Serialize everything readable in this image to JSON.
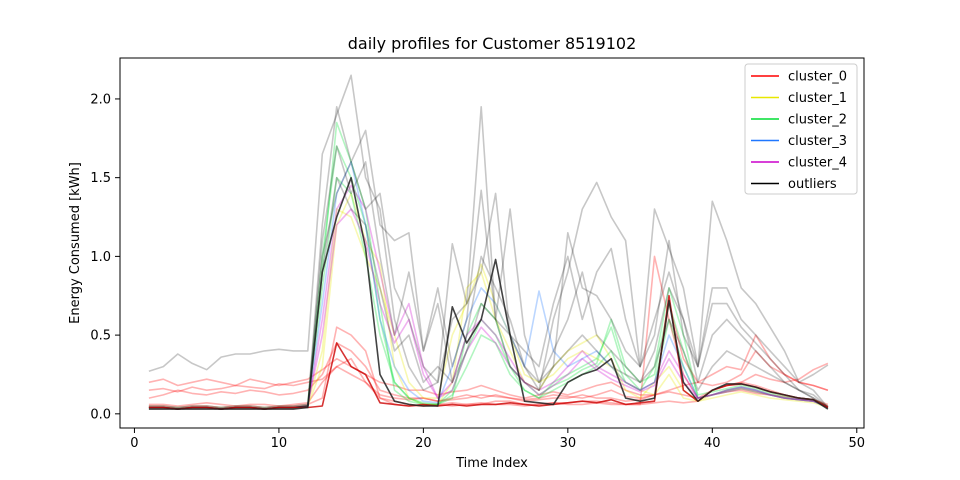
{
  "chart_data": {
    "type": "line",
    "title": "daily profiles for Customer 8519102",
    "xlabel": "Time Index",
    "ylabel": "Energy Consumed [kWh]",
    "xlim": [
      -1,
      50.5
    ],
    "ylim": [
      -0.09,
      2.26
    ],
    "xticks": [
      0,
      10,
      20,
      30,
      40,
      50
    ],
    "yticks": [
      0.0,
      0.5,
      1.0,
      1.5,
      2.0
    ],
    "ytick_labels": [
      "0.0",
      "0.5",
      "1.0",
      "1.5",
      "2.0"
    ],
    "legend_position": "upper-right",
    "series": [
      {
        "name": "cluster_0",
        "color": "#ff0000",
        "alpha": 0.3,
        "lines": [
          [
            0.15,
            0.16,
            0.14,
            0.17,
            0.15,
            0.16,
            0.18,
            0.17,
            0.16,
            0.19,
            0.18,
            0.2,
            0.22,
            0.3,
            0.25,
            0.2,
            0.12,
            0.1,
            0.09,
            0.1,
            0.08,
            0.09,
            0.1,
            0.12,
            0.11,
            0.1,
            0.09,
            0.1,
            0.12,
            0.11,
            0.1,
            0.12,
            0.15,
            0.11,
            0.1,
            0.12,
            0.14,
            0.12,
            0.1,
            0.15,
            0.18,
            0.2,
            0.25,
            0.22,
            0.2,
            0.22,
            0.28,
            0.32
          ],
          [
            0.05,
            0.05,
            0.04,
            0.05,
            0.05,
            0.04,
            0.05,
            0.05,
            0.04,
            0.05,
            0.05,
            0.06,
            0.1,
            0.55,
            0.5,
            0.4,
            0.1,
            0.06,
            0.05,
            0.05,
            0.06,
            0.07,
            0.06,
            0.06,
            0.08,
            0.08,
            0.06,
            0.06,
            0.07,
            0.07,
            0.08,
            0.08,
            0.07,
            0.06,
            0.06,
            0.07,
            0.08,
            0.07,
            0.08,
            0.15,
            0.18,
            0.2,
            0.18,
            0.15,
            0.12,
            0.1,
            0.09,
            0.05
          ],
          [
            0.1,
            0.12,
            0.15,
            0.13,
            0.12,
            0.14,
            0.13,
            0.15,
            0.14,
            0.12,
            0.13,
            0.15,
            0.25,
            0.45,
            0.4,
            0.3,
            0.15,
            0.12,
            0.1,
            0.1,
            0.08,
            0.1,
            0.12,
            0.1,
            0.12,
            0.1,
            0.08,
            0.09,
            0.1,
            0.1,
            0.12,
            0.1,
            0.1,
            0.08,
            0.09,
            0.12,
            0.7,
            0.35,
            0.2,
            0.18,
            0.2,
            0.25,
            0.4,
            0.3,
            0.25,
            0.2,
            0.18,
            0.15
          ],
          [
            0.06,
            0.06,
            0.05,
            0.06,
            0.07,
            0.06,
            0.05,
            0.06,
            0.06,
            0.05,
            0.06,
            0.07,
            0.2,
            0.3,
            0.35,
            0.2,
            0.1,
            0.08,
            0.06,
            0.05,
            0.06,
            0.05,
            0.06,
            0.07,
            0.06,
            0.06,
            0.05,
            0.06,
            0.07,
            0.06,
            0.06,
            0.07,
            0.06,
            0.06,
            0.06,
            1.0,
            0.6,
            0.25,
            0.1,
            0.12,
            0.14,
            0.15,
            0.13,
            0.12,
            0.11,
            0.1,
            0.09,
            0.06
          ],
          [
            0.2,
            0.22,
            0.18,
            0.2,
            0.22,
            0.2,
            0.18,
            0.22,
            0.2,
            0.18,
            0.2,
            0.22,
            0.28,
            0.35,
            0.3,
            0.25,
            0.2,
            0.18,
            0.15,
            0.15,
            0.12,
            0.14,
            0.15,
            0.18,
            0.15,
            0.12,
            0.1,
            0.12,
            0.14,
            0.12,
            0.15,
            0.18,
            0.2,
            0.15,
            0.12,
            0.12,
            0.15,
            0.18,
            0.2,
            0.25,
            0.3,
            0.28,
            0.5,
            0.35,
            0.25,
            0.2,
            0.18,
            0.15
          ]
        ]
      },
      {
        "name": "cluster_1",
        "color": "#e8e800",
        "alpha": 0.3,
        "lines": [
          [
            0.04,
            0.04,
            0.03,
            0.04,
            0.04,
            0.03,
            0.04,
            0.04,
            0.03,
            0.04,
            0.04,
            0.05,
            0.3,
            1.2,
            1.4,
            1.1,
            0.95,
            0.3,
            0.1,
            0.06,
            0.06,
            0.2,
            0.8,
            0.9,
            0.6,
            0.4,
            0.2,
            0.15,
            0.3,
            0.4,
            0.45,
            0.5,
            0.35,
            0.15,
            0.1,
            0.2,
            0.3,
            0.15,
            0.08,
            0.1,
            0.12,
            0.14,
            0.12,
            0.1,
            0.09,
            0.08,
            0.07,
            0.04
          ],
          [
            0.05,
            0.05,
            0.04,
            0.05,
            0.05,
            0.04,
            0.05,
            0.05,
            0.04,
            0.05,
            0.05,
            0.06,
            0.4,
            1.3,
            1.25,
            1.0,
            0.8,
            0.5,
            0.2,
            0.1,
            0.1,
            0.5,
            0.7,
            0.95,
            0.7,
            0.5,
            0.25,
            0.2,
            0.25,
            0.35,
            0.4,
            0.35,
            0.3,
            0.2,
            0.15,
            0.12,
            0.25,
            0.1,
            0.08,
            0.12,
            0.15,
            0.16,
            0.14,
            0.12,
            0.1,
            0.09,
            0.08,
            0.05
          ]
        ]
      },
      {
        "name": "cluster_2",
        "color": "#00dd33",
        "alpha": 0.3,
        "lines": [
          [
            0.04,
            0.04,
            0.03,
            0.04,
            0.04,
            0.03,
            0.04,
            0.04,
            0.03,
            0.04,
            0.04,
            0.05,
            0.9,
            1.85,
            1.6,
            1.3,
            0.7,
            0.15,
            0.08,
            0.06,
            0.06,
            0.1,
            0.5,
            0.7,
            0.6,
            0.3,
            0.15,
            0.1,
            0.2,
            0.25,
            0.3,
            0.35,
            0.55,
            0.25,
            0.15,
            0.3,
            0.8,
            0.5,
            0.1,
            0.12,
            0.15,
            0.17,
            0.15,
            0.12,
            0.1,
            0.09,
            0.08,
            0.04
          ],
          [
            0.05,
            0.05,
            0.04,
            0.05,
            0.05,
            0.04,
            0.05,
            0.05,
            0.04,
            0.05,
            0.05,
            0.06,
            1.0,
            1.7,
            1.5,
            1.2,
            0.6,
            0.2,
            0.1,
            0.06,
            0.06,
            0.15,
            0.4,
            0.6,
            0.5,
            0.3,
            0.2,
            0.12,
            0.18,
            0.22,
            0.28,
            0.32,
            0.6,
            0.3,
            0.2,
            0.25,
            0.7,
            0.4,
            0.12,
            0.14,
            0.16,
            0.18,
            0.16,
            0.13,
            0.11,
            0.1,
            0.09,
            0.05
          ],
          [
            0.04,
            0.04,
            0.04,
            0.04,
            0.04,
            0.04,
            0.04,
            0.04,
            0.04,
            0.04,
            0.04,
            0.05,
            0.8,
            1.5,
            1.4,
            1.0,
            0.5,
            0.2,
            0.1,
            0.07,
            0.06,
            0.12,
            0.3,
            0.5,
            0.45,
            0.25,
            0.15,
            0.1,
            0.15,
            0.2,
            0.25,
            0.3,
            0.4,
            0.2,
            0.15,
            0.2,
            0.6,
            0.3,
            0.1,
            0.12,
            0.14,
            0.16,
            0.14,
            0.12,
            0.1,
            0.09,
            0.08,
            0.04
          ]
        ]
      },
      {
        "name": "cluster_3",
        "color": "#1f77ff",
        "alpha": 0.3,
        "lines": [
          [
            0.04,
            0.04,
            0.03,
            0.04,
            0.04,
            0.03,
            0.04,
            0.04,
            0.03,
            0.04,
            0.04,
            0.05,
            0.7,
            1.4,
            1.6,
            1.2,
            0.6,
            0.3,
            0.15,
            0.08,
            0.07,
            0.3,
            0.6,
            0.8,
            0.7,
            0.5,
            0.3,
            0.78,
            0.4,
            0.3,
            0.35,
            0.4,
            0.3,
            0.2,
            0.15,
            0.2,
            0.5,
            0.3,
            0.1,
            0.12,
            0.15,
            0.17,
            0.15,
            0.12,
            0.1,
            0.09,
            0.08,
            0.04
          ]
        ]
      },
      {
        "name": "cluster_4",
        "color": "#cc00cc",
        "alpha": 0.3,
        "lines": [
          [
            0.04,
            0.04,
            0.03,
            0.04,
            0.04,
            0.03,
            0.04,
            0.04,
            0.03,
            0.04,
            0.04,
            0.05,
            0.6,
            1.3,
            1.45,
            1.3,
            0.9,
            0.5,
            0.7,
            0.3,
            0.1,
            0.2,
            0.5,
            0.6,
            0.5,
            0.35,
            0.2,
            0.15,
            0.2,
            0.3,
            0.4,
            0.3,
            0.25,
            0.2,
            0.15,
            0.2,
            0.4,
            0.25,
            0.1,
            0.12,
            0.15,
            0.17,
            0.15,
            0.12,
            0.1,
            0.09,
            0.08,
            0.04
          ],
          [
            0.05,
            0.05,
            0.04,
            0.05,
            0.05,
            0.04,
            0.05,
            0.05,
            0.04,
            0.05,
            0.05,
            0.06,
            0.5,
            1.2,
            1.3,
            1.1,
            0.7,
            0.45,
            0.6,
            0.25,
            0.1,
            0.15,
            0.4,
            0.55,
            0.45,
            0.3,
            0.2,
            0.12,
            0.18,
            0.25,
            0.35,
            0.28,
            0.22,
            0.18,
            0.14,
            0.18,
            0.35,
            0.2,
            0.1,
            0.12,
            0.14,
            0.16,
            0.14,
            0.12,
            0.1,
            0.09,
            0.08,
            0.05
          ]
        ]
      },
      {
        "name": "outliers",
        "color": "#000000",
        "alpha": 0.22,
        "lines": [
          [
            0.27,
            0.3,
            0.38,
            0.32,
            0.28,
            0.36,
            0.38,
            0.38,
            0.4,
            0.41,
            0.4,
            0.4,
            1.65,
            1.9,
            2.15,
            1.5,
            1.3,
            0.6,
            0.3,
            0.15,
            0.2,
            0.6,
            0.7,
            1.95,
            0.6,
            0.5,
            0.3,
            0.15,
            0.6,
            0.9,
            1.3,
            1.47,
            1.25,
            1.1,
            0.3,
            1.3,
            1.05,
            0.8,
            0.3,
            1.35,
            1.1,
            0.8,
            0.7,
            0.55,
            0.4,
            0.2,
            0.25,
            0.31
          ],
          [
            0.04,
            0.04,
            0.03,
            0.04,
            0.04,
            0.03,
            0.04,
            0.04,
            0.03,
            0.04,
            0.04,
            0.05,
            1.2,
            1.95,
            1.6,
            1.8,
            1.2,
            1.1,
            1.15,
            0.4,
            0.8,
            0.3,
            0.6,
            1.42,
            0.6,
            1.3,
            0.5,
            0.2,
            0.3,
            1.15,
            0.8,
            0.75,
            0.6,
            0.4,
            0.3,
            0.5,
            1.1,
            0.5,
            0.3,
            0.8,
            0.8,
            0.6,
            0.5,
            0.4,
            0.3,
            0.2,
            0.15,
            0.04
          ],
          [
            0.04,
            0.04,
            0.03,
            0.04,
            0.04,
            0.03,
            0.04,
            0.04,
            0.03,
            0.04,
            0.04,
            0.05,
            1.0,
            1.4,
            1.6,
            1.3,
            1.4,
            0.8,
            0.6,
            0.3,
            0.2,
            1.08,
            0.7,
            0.9,
            1.4,
            0.5,
            0.4,
            0.3,
            0.7,
            1.0,
            0.6,
            0.9,
            1.05,
            0.6,
            0.3,
            0.6,
            0.9,
            0.6,
            0.3,
            0.7,
            0.7,
            0.55,
            0.45,
            0.35,
            0.25,
            0.15,
            0.12,
            0.04
          ],
          [
            0.04,
            0.04,
            0.03,
            0.04,
            0.04,
            0.03,
            0.04,
            0.04,
            0.03,
            0.04,
            0.04,
            0.05,
            1.1,
            1.7,
            1.4,
            1.6,
            1.0,
            0.5,
            0.9,
            0.4,
            0.7,
            0.2,
            0.5,
            1.0,
            0.8,
            0.6,
            0.3,
            0.2,
            0.4,
            0.6,
            0.9,
            0.5,
            0.4,
            0.3,
            0.2,
            0.4,
            0.8,
            0.6,
            0.2,
            0.5,
            0.6,
            0.5,
            0.4,
            0.3,
            0.2,
            0.15,
            0.1,
            0.04
          ],
          [
            0.04,
            0.04,
            0.03,
            0.04,
            0.04,
            0.03,
            0.04,
            0.04,
            0.03,
            0.04,
            0.04,
            0.05,
            0.9,
            1.5,
            1.3,
            1.2,
            0.8,
            0.4,
            0.5,
            0.2,
            0.3,
            0.2,
            0.4,
            0.7,
            0.6,
            0.3,
            0.2,
            0.15,
            0.3,
            0.4,
            0.5,
            0.4,
            0.3,
            0.25,
            0.2,
            0.3,
            0.6,
            0.4,
            0.15,
            0.3,
            0.4,
            0.35,
            0.3,
            0.25,
            0.2,
            0.15,
            0.1,
            0.04
          ]
        ]
      },
      {
        "name": "",
        "color": "#cc0000",
        "alpha": 0.8,
        "lines": [
          [
            0.04,
            0.04,
            0.03,
            0.04,
            0.04,
            0.03,
            0.04,
            0.04,
            0.03,
            0.04,
            0.04,
            0.04,
            0.05,
            0.45,
            0.3,
            0.25,
            0.07,
            0.06,
            0.05,
            0.06,
            0.05,
            0.06,
            0.05,
            0.06,
            0.06,
            0.07,
            0.06,
            0.05,
            0.06,
            0.07,
            0.08,
            0.07,
            0.09,
            0.06,
            0.07,
            0.08,
            0.75,
            0.15,
            0.08,
            0.15,
            0.18,
            0.19,
            0.17,
            0.14,
            0.12,
            0.1,
            0.09,
            0.04
          ]
        ]
      },
      {
        "name": "",
        "color": "#222222",
        "alpha": 0.85,
        "lines": [
          [
            0.03,
            0.03,
            0.03,
            0.03,
            0.03,
            0.03,
            0.03,
            0.03,
            0.03,
            0.03,
            0.03,
            0.04,
            0.9,
            1.25,
            1.5,
            1.05,
            0.25,
            0.08,
            0.06,
            0.05,
            0.05,
            0.68,
            0.45,
            0.6,
            0.98,
            0.5,
            0.08,
            0.07,
            0.06,
            0.2,
            0.25,
            0.28,
            0.35,
            0.1,
            0.08,
            0.1,
            0.72,
            0.2,
            0.08,
            0.15,
            0.19,
            0.19,
            0.17,
            0.14,
            0.12,
            0.1,
            0.09,
            0.03
          ]
        ]
      }
    ]
  }
}
